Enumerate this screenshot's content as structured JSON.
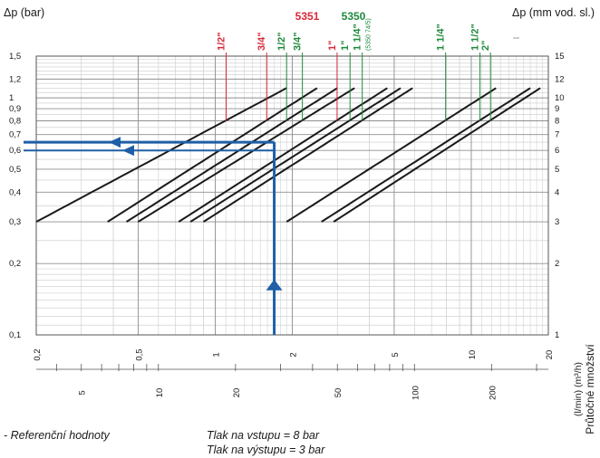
{
  "chart_data": {
    "type": "line",
    "title": "",
    "ylabel_left": "Δp (bar)",
    "ylabel_right": "Δp (mm vod. sl.)",
    "xlabel": "Průtočné množství",
    "xlabel_units": "(l/min)  (m³/h)",
    "x_scale": "log",
    "y_scale": "log",
    "grid": true,
    "flow_m3h_ticks": [
      "0,2",
      "0,5",
      "1",
      "2",
      "5",
      "10",
      "20"
    ],
    "flow_lmin_ticks": [
      "5",
      "10",
      "20",
      "50",
      "100",
      "200"
    ],
    "dp_bar_ticks": [
      "1,5",
      "1,2",
      "1",
      "0,9",
      "0,8",
      "0,7",
      "0,6",
      "0,5",
      "0,4",
      "0,3",
      "0,2",
      "0,1"
    ],
    "dp_mm_ticks": [
      "15",
      "12",
      "10",
      "9",
      "8",
      "7",
      "6",
      "5",
      "4",
      "3",
      "2",
      "1"
    ],
    "groups": [
      {
        "name": "5351",
        "color": "#d8283a"
      },
      {
        "name": "5350",
        "color": "#1f8a3c"
      }
    ],
    "series": [
      {
        "name": "1/2\"",
        "group": "5351",
        "color": "#d8283a",
        "x_m3h": [
          0.2,
          1.9
        ],
        "dp_bar": [
          0.3,
          1.1
        ]
      },
      {
        "name": "3/4\"",
        "group": "5351",
        "color": "#d8283a",
        "x_m3h": [
          0.38,
          2.5
        ],
        "dp_bar": [
          0.3,
          1.1
        ]
      },
      {
        "name": "1/2\"",
        "group": "5350",
        "color": "#1f8a3c",
        "x_m3h": [
          0.45,
          3.0
        ],
        "dp_bar": [
          0.3,
          1.1
        ]
      },
      {
        "name": "3/4\"",
        "group": "5350",
        "color": "#1f8a3c",
        "x_m3h": [
          0.5,
          3.5
        ],
        "dp_bar": [
          0.3,
          1.1
        ]
      },
      {
        "name": "1\"",
        "group": "5351",
        "color": "#d8283a",
        "x_m3h": [
          0.72,
          4.7
        ],
        "dp_bar": [
          0.3,
          1.1
        ]
      },
      {
        "name": "1\"",
        "group": "5350",
        "color": "#1f8a3c",
        "x_m3h": [
          0.8,
          5.3
        ],
        "dp_bar": [
          0.3,
          1.1
        ]
      },
      {
        "name": "1 1/4\"",
        "group": "5350",
        "color": "#1f8a3c",
        "sub": "(5350 74/5)",
        "x_m3h": [
          0.9,
          5.9
        ],
        "dp_bar": [
          0.3,
          1.1
        ]
      },
      {
        "name": "1 1/4\"",
        "group": "5350",
        "color": "#1f8a3c",
        "x_m3h": [
          1.9,
          12.5
        ],
        "dp_bar": [
          0.3,
          1.1
        ]
      },
      {
        "name": "1 1/2\"",
        "group": "5350",
        "color": "#1f8a3c",
        "x_m3h": [
          2.6,
          17
        ],
        "dp_bar": [
          0.3,
          1.1
        ]
      },
      {
        "name": "2\"",
        "group": "5350",
        "color": "#1f8a3c",
        "x_m3h": [
          2.9,
          18.6
        ],
        "dp_bar": [
          0.3,
          1.1
        ]
      }
    ],
    "reference": {
      "flow_m3h": 1.7,
      "dp_bar": [
        0.6,
        0.65
      ],
      "color": "#1f5fa6"
    }
  },
  "notes": {
    "reference": "- Referenční hodnoty",
    "inlet": "Tlak na vstupu = 8 bar",
    "outlet": "Tlak na výstupu = 3 bar"
  }
}
